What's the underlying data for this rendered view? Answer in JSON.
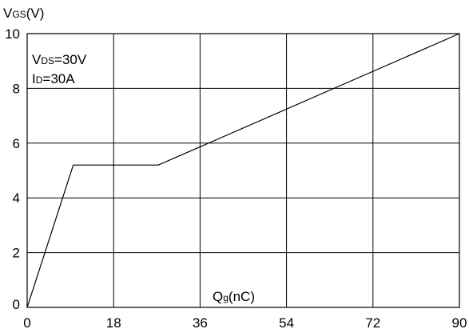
{
  "chart_data": {
    "type": "line",
    "ylabel": {
      "main": "V",
      "sub": "GS",
      "unit": "(V)"
    },
    "xlabel": {
      "main": "Q",
      "sub": "g",
      "unit": "(nC)"
    },
    "annotations": [
      {
        "main": "V",
        "sub": "DS",
        "rest": "=30V"
      },
      {
        "main": "I",
        "sub": "D",
        "rest": "=30A"
      }
    ],
    "xlim": [
      0,
      90
    ],
    "ylim": [
      0,
      10
    ],
    "xticks": [
      0,
      18,
      36,
      54,
      72,
      90
    ],
    "yticks": [
      0,
      2,
      4,
      6,
      8,
      10
    ],
    "grid": true,
    "series": [
      {
        "x": [
          0,
          9.6,
          27.3,
          90
        ],
        "y": [
          0,
          5.2,
          5.2,
          10
        ]
      }
    ]
  }
}
